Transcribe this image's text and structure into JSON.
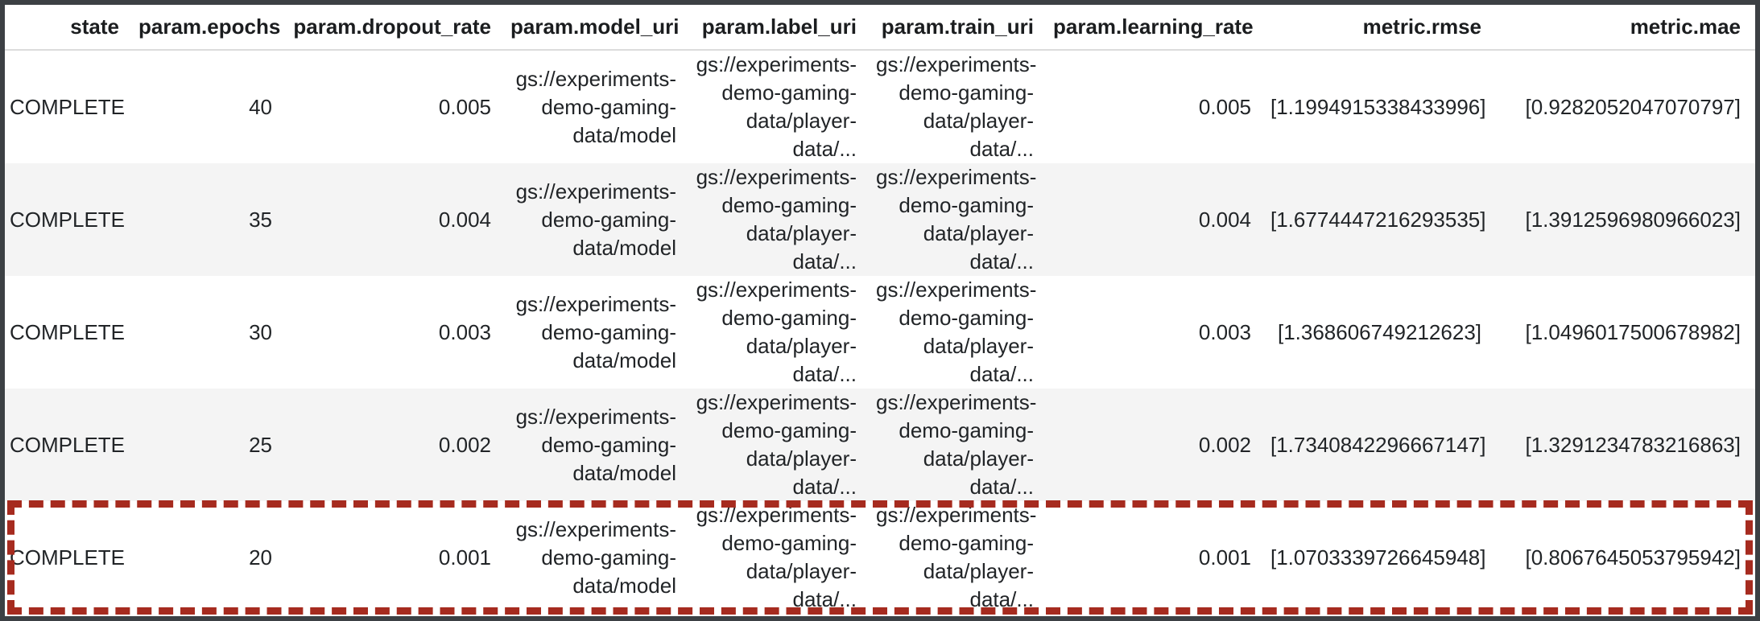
{
  "table": {
    "columns": [
      "state",
      "param.epochs",
      "param.dropout_rate",
      "param.model_uri",
      "param.label_uri",
      "param.train_uri",
      "param.learning_rate",
      "metric.rmse",
      "metric.mae"
    ],
    "rows": [
      [
        "COMPLETE",
        "40",
        "0.005",
        "gs://experiments-demo-gaming-data/model",
        "gs://experiments-demo-gaming-data/player-data/...",
        "gs://experiments-demo-gaming-data/player-data/...",
        "0.005",
        "[1.1994915338433996]",
        "[0.9282052047070797]"
      ],
      [
        "COMPLETE",
        "35",
        "0.004",
        "gs://experiments-demo-gaming-data/model",
        "gs://experiments-demo-gaming-data/player-data/...",
        "gs://experiments-demo-gaming-data/player-data/...",
        "0.004",
        "[1.6774447216293535]",
        "[1.3912596980966023]"
      ],
      [
        "COMPLETE",
        "30",
        "0.003",
        "gs://experiments-demo-gaming-data/model",
        "gs://experiments-demo-gaming-data/player-data/...",
        "gs://experiments-demo-gaming-data/player-data/...",
        "0.003",
        "[1.368606749212623]",
        "[1.0496017500678982]"
      ],
      [
        "COMPLETE",
        "25",
        "0.002",
        "gs://experiments-demo-gaming-data/model",
        "gs://experiments-demo-gaming-data/player-data/...",
        "gs://experiments-demo-gaming-data/player-data/...",
        "0.002",
        "[1.7340842296667147]",
        "[1.3291234783216863]"
      ],
      [
        "COMPLETE",
        "20",
        "0.001",
        "gs://experiments-demo-gaming-data/model",
        "gs://experiments-demo-gaming-data/player-data/...",
        "gs://experiments-demo-gaming-data/player-data/...",
        "0.001",
        "[1.0703339726645948]",
        "[0.8067645053795942]"
      ]
    ],
    "highlighted_row_index": 4,
    "colors": {
      "highlight_border": "#a62b1f",
      "row_stripe": "#f4f4f4",
      "outer_frame": "#3c4044",
      "header_divider": "#dcdcdc",
      "text": "#212427"
    }
  }
}
